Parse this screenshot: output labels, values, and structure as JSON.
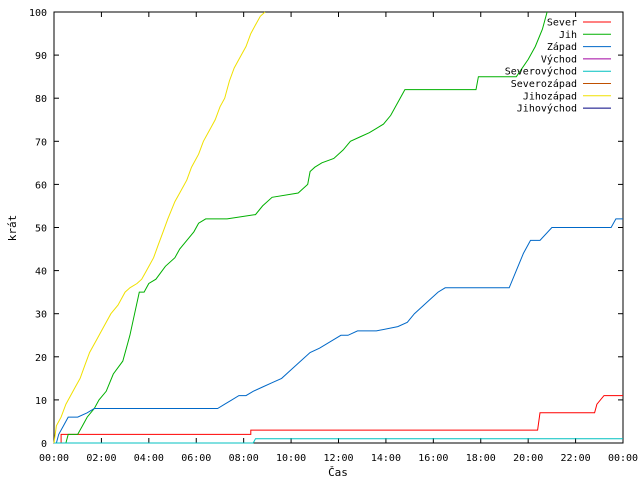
{
  "chart_data": {
    "type": "line",
    "title": "",
    "xlabel": "Čas",
    "ylabel": "krát",
    "xlim": [
      0,
      24
    ],
    "ylim": [
      0,
      100
    ],
    "x_ticks": [
      0,
      2,
      4,
      6,
      8,
      10,
      12,
      14,
      16,
      18,
      20,
      22,
      24
    ],
    "x_tick_labels": [
      "00:00",
      "02:00",
      "04:00",
      "06:00",
      "08:00",
      "10:00",
      "12:00",
      "14:00",
      "16:00",
      "18:00",
      "20:00",
      "22:00",
      "00:00"
    ],
    "y_ticks": [
      0,
      10,
      20,
      30,
      40,
      50,
      60,
      70,
      80,
      90,
      100
    ],
    "y_tick_labels": [
      "0",
      "10",
      "20",
      "30",
      "40",
      "50",
      "60",
      "70",
      "80",
      "90",
      "100"
    ],
    "grid": false,
    "legend_position": "top-right",
    "series": [
      {
        "name": "Sever",
        "color": "#ff0000",
        "x": [
          0,
          0.3,
          0.3,
          8.3,
          8.3,
          20.4,
          20.5,
          22.8,
          22.9,
          23.2,
          24.0
        ],
        "y": [
          0,
          0,
          2,
          2,
          3,
          3,
          7,
          7,
          9,
          11,
          11
        ]
      },
      {
        "name": "Jih",
        "color": "#00b000",
        "x": [
          0,
          0.5,
          0.6,
          1.0,
          1.2,
          1.4,
          1.7,
          1.9,
          2.2,
          2.5,
          2.9,
          3.2,
          3.4,
          3.6,
          3.8,
          4.0,
          4.3,
          4.7,
          5.1,
          5.3,
          5.6,
          5.9,
          6.1,
          6.4,
          6.6,
          6.8,
          7.0,
          7.3,
          8.5,
          8.8,
          9.2,
          10.3,
          10.7,
          10.8,
          11.0,
          11.3,
          11.8,
          12.2,
          12.5,
          12.9,
          13.3,
          13.6,
          13.9,
          14.2,
          14.5,
          14.8,
          15.0,
          17.8,
          17.9,
          19.5,
          20.0,
          20.3,
          20.6,
          20.8
        ],
        "y": [
          0,
          0,
          2,
          2,
          4,
          6,
          8,
          10,
          12,
          16,
          19,
          25,
          30,
          35,
          35,
          37,
          38,
          41,
          43,
          45,
          47,
          49,
          51,
          52,
          52,
          52,
          52,
          52,
          53,
          55,
          57,
          58,
          60,
          63,
          64,
          65,
          66,
          68,
          70,
          71,
          72,
          73,
          74,
          76,
          79,
          82,
          82,
          82,
          85,
          85,
          89,
          92,
          96,
          100
        ]
      },
      {
        "name": "Západ",
        "color": "#0068c8",
        "x": [
          0,
          0.1,
          0.2,
          0.4,
          0.6,
          1.0,
          1.4,
          1.7,
          6.9,
          7.2,
          7.5,
          7.8,
          8.1,
          8.4,
          8.8,
          9.2,
          9.6,
          10.0,
          10.4,
          10.8,
          11.2,
          11.8,
          12.1,
          12.4,
          12.8,
          13.2,
          13.6,
          14.5,
          14.9,
          15.2,
          15.8,
          16.2,
          16.5,
          16.8,
          19.2,
          19.5,
          19.8,
          20.1,
          20.5,
          21.0,
          23.5,
          23.7,
          24.0
        ],
        "y": [
          0,
          0,
          2,
          4,
          6,
          6,
          7,
          8,
          8,
          9,
          10,
          11,
          11,
          12,
          13,
          14,
          15,
          17,
          19,
          21,
          22,
          24,
          25,
          25,
          26,
          26,
          26,
          27,
          28,
          30,
          33,
          35,
          36,
          36,
          36,
          40,
          44,
          47,
          47,
          50,
          50,
          52,
          52
        ]
      },
      {
        "name": "Východ",
        "color": "#a000a0",
        "x": [],
        "y": []
      },
      {
        "name": "Severovýchod",
        "color": "#00c0c0",
        "x": [
          0,
          8.4,
          8.5,
          24.0
        ],
        "y": [
          0,
          0,
          1,
          1
        ]
      },
      {
        "name": "Severozápad",
        "color": "#c05000",
        "x": [],
        "y": []
      },
      {
        "name": "Jihozápad",
        "color": "#f0e000",
        "x": [
          0,
          0.1,
          0.3,
          0.5,
          0.7,
          0.9,
          1.1,
          1.3,
          1.5,
          1.8,
          2.1,
          2.4,
          2.7,
          3.0,
          3.2,
          3.5,
          3.7,
          3.9,
          4.2,
          4.4,
          4.6,
          4.8,
          5.1,
          5.3,
          5.6,
          5.8,
          6.1,
          6.3,
          6.6,
          6.8,
          7.0,
          7.2,
          7.4,
          7.6,
          7.8,
          8.1,
          8.3,
          8.5,
          8.7,
          8.9
        ],
        "y": [
          0,
          4,
          6,
          9,
          11,
          13,
          15,
          18,
          21,
          24,
          27,
          30,
          32,
          35,
          36,
          37,
          38,
          40,
          43,
          46,
          49,
          52,
          56,
          58,
          61,
          64,
          67,
          70,
          73,
          75,
          78,
          80,
          84,
          87,
          89,
          92,
          95,
          97,
          99,
          100
        ]
      },
      {
        "name": "Jihovýchod",
        "color": "#000080",
        "x": [],
        "y": []
      }
    ]
  }
}
